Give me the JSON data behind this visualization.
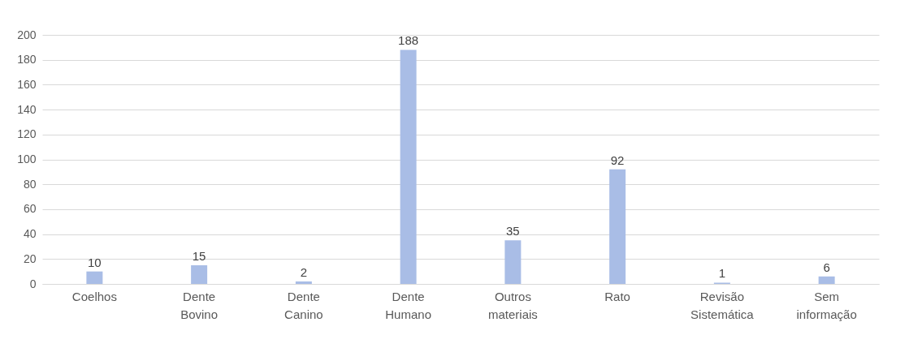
{
  "chart_data": {
    "type": "bar",
    "categories": [
      "Coelhos",
      "Dente Bovino",
      "Dente Canino",
      "Dente Humano",
      "Outros materiais",
      "Rato",
      "Revisão Sistemática",
      "Sem informação"
    ],
    "values": [
      10,
      15,
      2,
      188,
      35,
      92,
      1,
      6
    ],
    "color": "#a9bde6",
    "ylim": [
      0,
      200
    ],
    "yticks": [
      0,
      20,
      40,
      60,
      80,
      100,
      120,
      140,
      160,
      180,
      200
    ],
    "grid": "y",
    "data_labels": true
  }
}
